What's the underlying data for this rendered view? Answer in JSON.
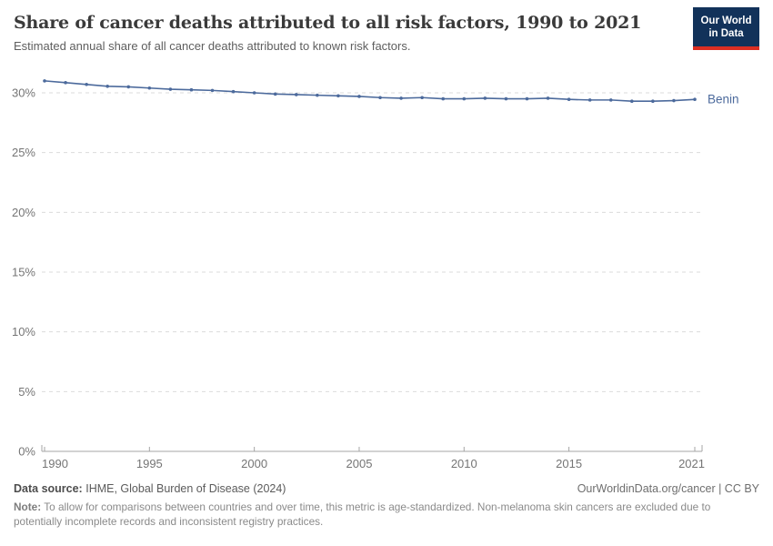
{
  "header": {
    "title": "Share of cancer deaths attributed to all risk factors, 1990 to 2021",
    "subtitle": "Estimated annual share of all cancer deaths attributed to known risk factors.",
    "logo": {
      "line1": "Our World",
      "line2": "in Data"
    }
  },
  "chart_data": {
    "type": "line",
    "title": "Share of cancer deaths attributed to all risk factors, 1990 to 2021",
    "xlabel": "",
    "ylabel": "",
    "xlim": [
      1990,
      2021
    ],
    "ylim": [
      0,
      31.5
    ],
    "x_ticks": [
      1990,
      1995,
      2000,
      2005,
      2010,
      2015,
      2021
    ],
    "y_ticks": [
      0,
      5,
      10,
      15,
      20,
      25,
      30
    ],
    "y_tick_suffix": "%",
    "grid": "horizontal-dashed",
    "legend_position": "end-of-line",
    "series": [
      {
        "name": "Benin",
        "color": "#4C6A9C",
        "x": [
          1990,
          1991,
          1992,
          1993,
          1994,
          1995,
          1996,
          1997,
          1998,
          1999,
          2000,
          2001,
          2002,
          2003,
          2004,
          2005,
          2006,
          2007,
          2008,
          2009,
          2010,
          2011,
          2012,
          2013,
          2014,
          2015,
          2016,
          2017,
          2018,
          2019,
          2020,
          2021
        ],
        "values": [
          31.0,
          30.85,
          30.7,
          30.55,
          30.5,
          30.4,
          30.3,
          30.25,
          30.2,
          30.1,
          30.0,
          29.9,
          29.85,
          29.8,
          29.75,
          29.7,
          29.6,
          29.55,
          29.6,
          29.5,
          29.5,
          29.55,
          29.5,
          29.5,
          29.55,
          29.45,
          29.4,
          29.4,
          29.3,
          29.3,
          29.35,
          29.45
        ]
      }
    ]
  },
  "footer": {
    "datasource_label": "Data source:",
    "datasource_value": "IHME, Global Burden of Disease (2024)",
    "rights": "OurWorldinData.org/cancer | CC BY",
    "note_label": "Note:",
    "note_value": "To allow for comparisons between countries and over time, this metric is age-standardized. Non-melanoma skin cancers are excluded due to potentially incomplete records and inconsistent registry practices."
  },
  "colors": {
    "series_blue": "#4C6A9C",
    "logo_navy": "#12325A",
    "logo_red": "#DC2E22",
    "grid": "#DBDBDB",
    "axis": "#A5A5A5",
    "tick_label": "#757575",
    "title_text": "#3A3A3A",
    "subtitle_text": "#5E5E5E",
    "footer_text": "#5B5B5B",
    "note_text": "#8A8A8A"
  }
}
